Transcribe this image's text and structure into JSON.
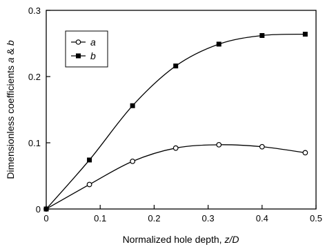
{
  "chart_data": {
    "type": "line",
    "xlabel_prefix": "Normalized hole depth, ",
    "xlabel_var": "z/D",
    "ylabel_prefix": "Dimensionless coefficients ",
    "ylabel_a": "a",
    "ylabel_amp": " & ",
    "ylabel_b": "b",
    "xlim": [
      0,
      0.5
    ],
    "ylim": [
      0,
      0.3
    ],
    "xticks": [
      "0",
      "0.1",
      "0.2",
      "0.3",
      "0.4",
      "0.5"
    ],
    "yticks": [
      "0",
      "0.1",
      "0.2",
      "0.3"
    ],
    "grid": false,
    "legend_position": "top-left",
    "series": [
      {
        "name": "a",
        "marker": "open-circle",
        "x": [
          0,
          0.08,
          0.16,
          0.24,
          0.32,
          0.4,
          0.48
        ],
        "y": [
          0,
          0.037,
          0.072,
          0.092,
          0.097,
          0.094,
          0.085
        ]
      },
      {
        "name": "b",
        "marker": "filled-square",
        "x": [
          0,
          0.08,
          0.16,
          0.24,
          0.32,
          0.4,
          0.48
        ],
        "y": [
          0,
          0.074,
          0.156,
          0.216,
          0.249,
          0.262,
          0.264
        ]
      }
    ]
  }
}
